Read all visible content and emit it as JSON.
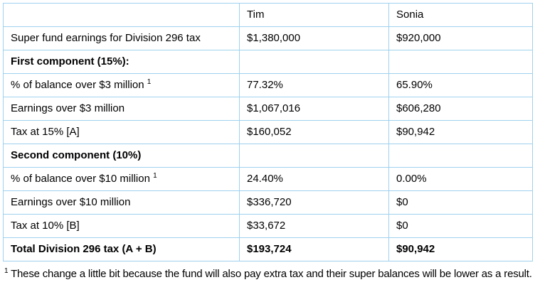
{
  "table": {
    "columns": [
      "",
      "Tim",
      "Sonia"
    ],
    "rows": [
      {
        "label": "Super fund earnings for Division 296 tax",
        "sup": "",
        "tim": "$1,380,000",
        "sonia": "$920,000",
        "style": "normal"
      },
      {
        "label": "First component (15%):",
        "sup": "",
        "tim": "",
        "sonia": "",
        "style": "section"
      },
      {
        "label": "% of balance over $3 million",
        "sup": "1",
        "tim": "77.32%",
        "sonia": "65.90%",
        "style": "normal"
      },
      {
        "label": "Earnings over $3 million",
        "sup": "",
        "tim": "$1,067,016",
        "sonia": "$606,280",
        "style": "normal"
      },
      {
        "label": "Tax at 15% [A]",
        "sup": "",
        "tim": "$160,052",
        "sonia": "$90,942",
        "style": "normal"
      },
      {
        "label": "Second component (10%)",
        "sup": "",
        "tim": "",
        "sonia": "",
        "style": "section"
      },
      {
        "label": "% of balance over $10 million",
        "sup": "1",
        "tim": "24.40%",
        "sonia": "0.00%",
        "style": "normal"
      },
      {
        "label": "Earnings over $10 million",
        "sup": "",
        "tim": "$336,720",
        "sonia": "$0",
        "style": "normal"
      },
      {
        "label": "Tax at 10% [B]",
        "sup": "",
        "tim": "$33,672",
        "sonia": "$0",
        "style": "normal"
      },
      {
        "label": "Total Division 296 tax (A + B)",
        "sup": "",
        "tim": "$193,724",
        "sonia": "$90,942",
        "style": "total"
      }
    ]
  },
  "footnote": {
    "sup": "1",
    "text": " These change a little bit because the fund will also pay extra tax and their super balances will be lower as a result."
  },
  "colors": {
    "border_light": "#9fd1ee",
    "border_accent": "#2aa3dc",
    "text": "#000000"
  }
}
